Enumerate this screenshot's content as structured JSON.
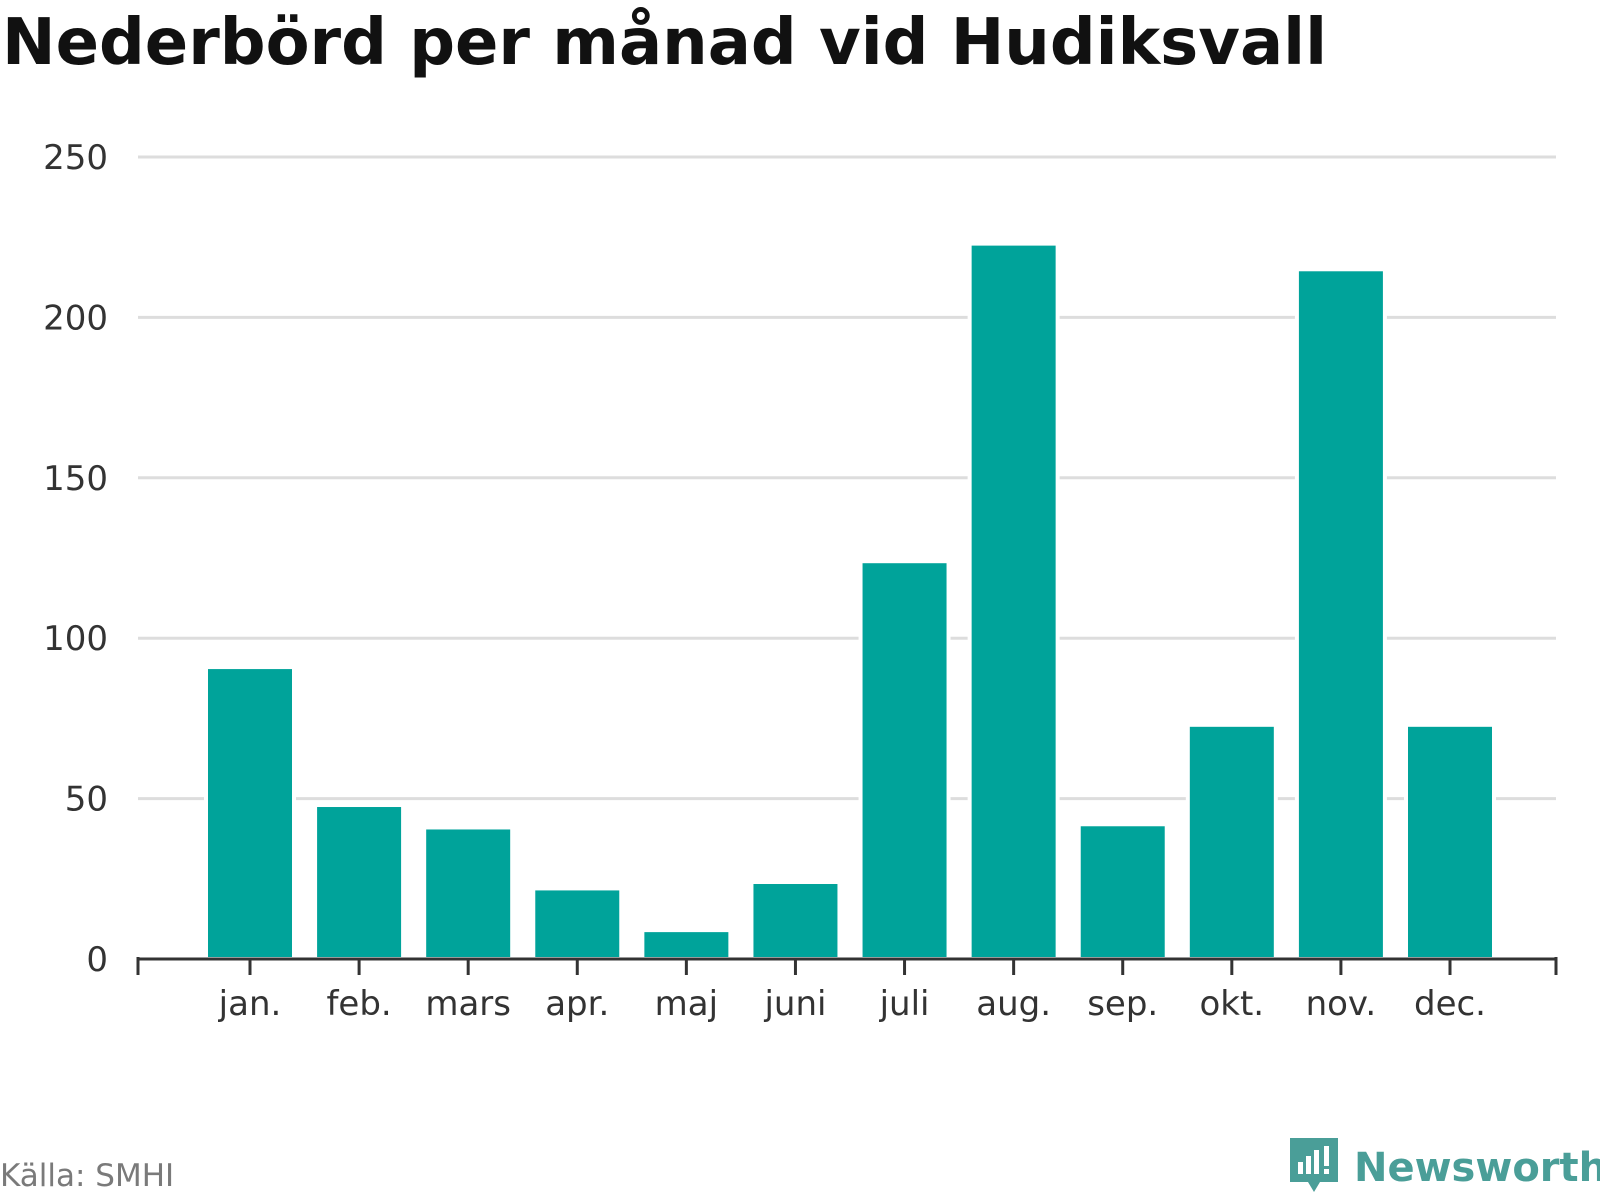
{
  "colors": {
    "bar": "#00a39a",
    "grid": "#dddddd",
    "axis": "#333333",
    "brand": "#4a9e98"
  },
  "chart_data": {
    "type": "bar",
    "title": "Nederbörd per månad vid Hudiksvall",
    "xlabel": "",
    "ylabel": "",
    "categories": [
      "jan.",
      "feb.",
      "mars",
      "apr.",
      "maj",
      "juni",
      "juli",
      "aug.",
      "sep.",
      "okt.",
      "nov.",
      "dec."
    ],
    "values": [
      91,
      48,
      41,
      22,
      9,
      24,
      124,
      223,
      42,
      73,
      215,
      73
    ],
    "ylim": [
      0,
      250
    ],
    "yticks": [
      0,
      50,
      100,
      150,
      200,
      250
    ],
    "grid": true,
    "legend": "none"
  },
  "footer": {
    "source": "Källa: SMHI",
    "brand": "Newsworthy",
    "brand_icon": "newsworthy-logo-icon"
  }
}
